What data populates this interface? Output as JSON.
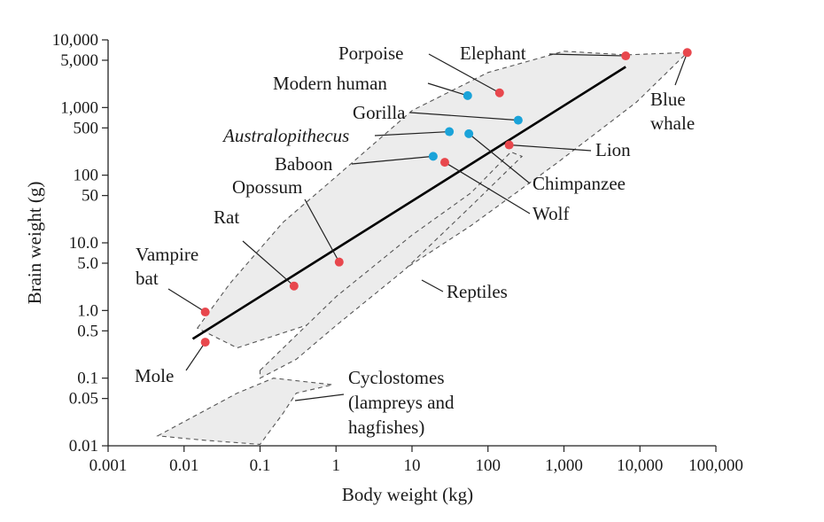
{
  "chart_data": {
    "type": "scatter",
    "xlabel": "Body weight (kg)",
    "ylabel": "Brain weight (g)",
    "xscale": "log",
    "yscale": "log",
    "xlim": [
      0.001,
      100000
    ],
    "ylim": [
      0.01,
      10000
    ],
    "x_ticks": [
      {
        "value": 0.001,
        "label": "0.001"
      },
      {
        "value": 0.01,
        "label": "0.01"
      },
      {
        "value": 0.1,
        "label": "0.1"
      },
      {
        "value": 1,
        "label": "1"
      },
      {
        "value": 10,
        "label": "10"
      },
      {
        "value": 100,
        "label": "100"
      },
      {
        "value": 1000,
        "label": "1,000"
      },
      {
        "value": 10000,
        "label": "10,000"
      },
      {
        "value": 100000,
        "label": "100,000"
      }
    ],
    "y_ticks": [
      {
        "value": 0.01,
        "label": "0.01"
      },
      {
        "value": 0.05,
        "label": "0.05"
      },
      {
        "value": 0.1,
        "label": "0.1"
      },
      {
        "value": 0.5,
        "label": "0.5"
      },
      {
        "value": 1,
        "label": "1.0"
      },
      {
        "value": 5,
        "label": "5.0"
      },
      {
        "value": 10,
        "label": "10.0"
      },
      {
        "value": 50,
        "label": "50"
      },
      {
        "value": 100,
        "label": "100"
      },
      {
        "value": 500,
        "label": "500"
      },
      {
        "value": 1000,
        "label": "1,000"
      },
      {
        "value": 5000,
        "label": "5,000"
      },
      {
        "value": 10000,
        "label": "10,000"
      }
    ],
    "colors": {
      "mammal": "#e8474d",
      "primate": "#1aa3d9",
      "region_fill": "#ececec",
      "trend_line": "#000000"
    },
    "points": [
      {
        "label": "Vampire bat",
        "lines": [
          "Vampire",
          "bat"
        ],
        "x": 0.019,
        "y": 0.95,
        "group": "mammal"
      },
      {
        "label": "Mole",
        "lines": [
          "Mole"
        ],
        "x": 0.019,
        "y": 0.34,
        "group": "mammal"
      },
      {
        "label": "Rat",
        "lines": [
          "Rat"
        ],
        "x": 0.28,
        "y": 2.3,
        "group": "mammal"
      },
      {
        "label": "Opossum",
        "lines": [
          "Opossum"
        ],
        "x": 1.1,
        "y": 5.2,
        "group": "mammal"
      },
      {
        "label": "Baboon",
        "lines": [
          "Baboon"
        ],
        "x": 19,
        "y": 190,
        "group": "primate"
      },
      {
        "label": "Wolf",
        "lines": [
          "Wolf"
        ],
        "x": 27,
        "y": 155,
        "group": "mammal"
      },
      {
        "label": "Australopithecus",
        "lines": [
          "Australopithecus"
        ],
        "x": 31,
        "y": 440,
        "group": "primate",
        "italic": true
      },
      {
        "label": "Chimpanzee",
        "lines": [
          "Chimpanzee"
        ],
        "x": 56,
        "y": 410,
        "group": "primate"
      },
      {
        "label": "Modern human",
        "lines": [
          "Modern human"
        ],
        "x": 54,
        "y": 1500,
        "group": "primate"
      },
      {
        "label": "Porpoise",
        "lines": [
          "Porpoise"
        ],
        "x": 142,
        "y": 1650,
        "group": "mammal"
      },
      {
        "label": "Gorilla",
        "lines": [
          "Gorilla"
        ],
        "x": 250,
        "y": 650,
        "group": "primate"
      },
      {
        "label": "Lion",
        "lines": [
          "Lion"
        ],
        "x": 190,
        "y": 280,
        "group": "mammal"
      },
      {
        "label": "Elephant",
        "lines": [
          "Elephant"
        ],
        "x": 6500,
        "y": 5800,
        "group": "mammal"
      },
      {
        "label": "Blue whale",
        "lines": [
          "Blue",
          "whale"
        ],
        "x": 42000,
        "y": 6500,
        "group": "mammal"
      }
    ],
    "trend_line": {
      "x": [
        0.013,
        6500
      ],
      "y": [
        0.38,
        4000
      ]
    },
    "regions": [
      {
        "label": "Mammals",
        "labeled": false,
        "polygon": [
          [
            0.015,
            0.55
          ],
          [
            0.04,
            2.5
          ],
          [
            0.2,
            20
          ],
          [
            1,
            95
          ],
          [
            10,
            900
          ],
          [
            100,
            3300
          ],
          [
            1000,
            6800
          ],
          [
            6500,
            6000
          ],
          [
            42000,
            6500
          ],
          [
            9000,
            1200
          ],
          [
            800,
            150
          ],
          [
            60,
            18
          ],
          [
            3,
            2
          ],
          [
            0.4,
            0.6
          ],
          [
            0.05,
            0.28
          ]
        ]
      },
      {
        "label": "Reptiles",
        "lines": [
          "Reptiles"
        ],
        "labeled": true,
        "polygon": [
          [
            0.1,
            0.13
          ],
          [
            1,
            1.6
          ],
          [
            10,
            13
          ],
          [
            60,
            55
          ],
          [
            200,
            220
          ],
          [
            280,
            190
          ],
          [
            60,
            35
          ],
          [
            8,
            4
          ],
          [
            1,
            0.6
          ],
          [
            0.3,
            0.19
          ],
          [
            0.1,
            0.1
          ]
        ]
      },
      {
        "label": "Cyclostomes",
        "lines": [
          "Cyclostomes",
          "(lampreys and",
          "hagfishes)"
        ],
        "labeled": true,
        "polygon": [
          [
            0.0045,
            0.014
          ],
          [
            0.05,
            0.06
          ],
          [
            0.15,
            0.1
          ],
          [
            0.9,
            0.08
          ],
          [
            0.3,
            0.06
          ],
          [
            0.2,
            0.03
          ],
          [
            0.1,
            0.0105
          ],
          [
            0.02,
            0.012
          ]
        ]
      }
    ]
  }
}
